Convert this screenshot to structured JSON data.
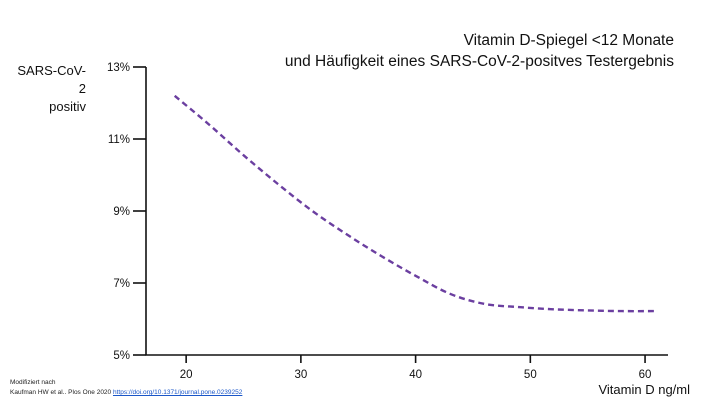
{
  "chart_data": {
    "type": "line",
    "title": [
      "Vitamin D-Spiegel <12 Monate",
      "und Häufigkeit eines SARS-CoV-2-positves Testergebnis"
    ],
    "ylabel": [
      "SARS-CoV-2",
      "positiv"
    ],
    "xlabel": "Vitamin D ng/ml",
    "xlim": [
      16.5,
      62
    ],
    "ylim": [
      5,
      13
    ],
    "x_ticks": [
      20,
      30,
      40,
      50,
      60
    ],
    "y_ticks": [
      5,
      7,
      9,
      11,
      13
    ],
    "y_tick_labels": [
      "5%",
      "7%",
      "9%",
      "11%",
      "13%"
    ],
    "series": [
      {
        "color": "#6b3fa0",
        "line_style": "dashed",
        "x": [
          19,
          22,
          25,
          28,
          31,
          34,
          37,
          40,
          43,
          46,
          49,
          52,
          55,
          58,
          61
        ],
        "y": [
          12.2,
          11.4,
          10.55,
          9.75,
          9.0,
          8.35,
          7.75,
          7.2,
          6.7,
          6.42,
          6.33,
          6.27,
          6.24,
          6.22,
          6.22
        ]
      }
    ],
    "grid": false,
    "legend": "none"
  },
  "source": {
    "line1": "Modifiziert nach",
    "line2": "Kaufman HW et al.. Plos One 2020",
    "link": "https://doi.org/10.1371/journal.pone.0239252"
  }
}
